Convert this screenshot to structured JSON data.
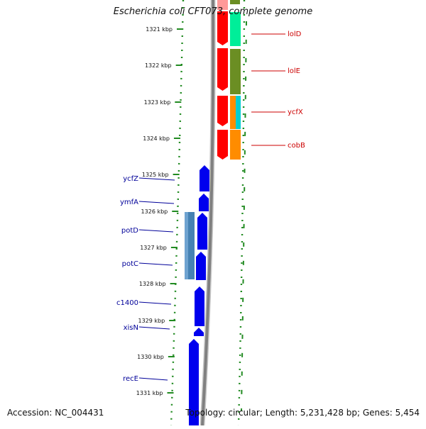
{
  "title": "Escherichia coli CFT073, complete genome",
  "accession": "Accession: NC_004431",
  "stats": "Topology: circular; Length: 5,231,428 bp; Genes: 5,454",
  "colors": {
    "forward_label": "#cc0000",
    "reverse_label": "#000099",
    "reverse_cds": "#0000ee",
    "ruler": "#228b22",
    "backbone": "#808080"
  },
  "ticks": [
    "1321 kbp",
    "1322 kbp",
    "1323 kbp",
    "1324 kbp",
    "1325 kbp",
    "1326 kbp",
    "1327 kbp",
    "1328 kbp",
    "1329 kbp",
    "1330 kbp",
    "1331 kbp"
  ],
  "forward_genes": [
    {
      "name": "lolD",
      "cog_color": "#00ee99"
    },
    {
      "name": "lolE",
      "cog_color": "#6b8e23"
    },
    {
      "name": "ycfX",
      "cog_color": "#00ced1"
    },
    {
      "name": "cobB",
      "cog_color": "#ff8c00"
    }
  ],
  "reverse_genes": [
    {
      "name": "ycfZ"
    },
    {
      "name": "ymfA"
    },
    {
      "name": "potD"
    },
    {
      "name": "potC"
    },
    {
      "name": "c1400"
    },
    {
      "name": "xisN"
    },
    {
      "name": "recE"
    }
  ]
}
